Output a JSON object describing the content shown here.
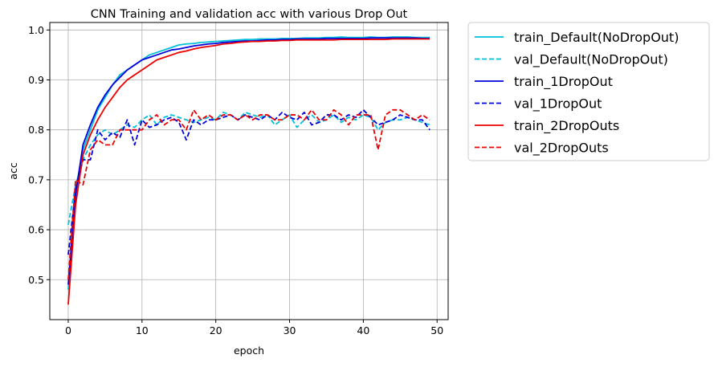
{
  "chart_data": {
    "type": "line",
    "title": "CNN Training and validation acc with various Drop Out",
    "xlabel": "epoch",
    "ylabel": "acc",
    "xlim": [
      -2.5,
      51.5
    ],
    "ylim": [
      0.42,
      1.015
    ],
    "xticks": [
      0,
      10,
      20,
      30,
      40,
      50
    ],
    "yticks": [
      0.5,
      0.6,
      0.7,
      0.8,
      0.9,
      1.0
    ],
    "grid": true,
    "legend_position": "outside-right",
    "series": [
      {
        "name": "train_Default(NoDropOut)",
        "color": "#00bfd8",
        "dash": "solid",
        "values": [
          0.48,
          0.68,
          0.76,
          0.8,
          0.84,
          0.865,
          0.89,
          0.91,
          0.92,
          0.93,
          0.94,
          0.95,
          0.955,
          0.96,
          0.965,
          0.97,
          0.972,
          0.973,
          0.975,
          0.976,
          0.977,
          0.978,
          0.979,
          0.98,
          0.981,
          0.981,
          0.982,
          0.982,
          0.982,
          0.983,
          0.983,
          0.983,
          0.984,
          0.984,
          0.984,
          0.985,
          0.985,
          0.986,
          0.985,
          0.985,
          0.985,
          0.986,
          0.985,
          0.985,
          0.986,
          0.986,
          0.986,
          0.985,
          0.985,
          0.985
        ]
      },
      {
        "name": "val_Default(NoDropOut)",
        "color": "#00bfd8",
        "dash": "dashed",
        "values": [
          0.61,
          0.69,
          0.74,
          0.77,
          0.79,
          0.8,
          0.79,
          0.8,
          0.81,
          0.805,
          0.82,
          0.83,
          0.81,
          0.825,
          0.83,
          0.825,
          0.82,
          0.815,
          0.82,
          0.825,
          0.82,
          0.835,
          0.83,
          0.82,
          0.835,
          0.83,
          0.825,
          0.83,
          0.81,
          0.82,
          0.83,
          0.805,
          0.82,
          0.83,
          0.815,
          0.82,
          0.83,
          0.815,
          0.825,
          0.82,
          0.83,
          0.825,
          0.8,
          0.815,
          0.82,
          0.82,
          0.825,
          0.82,
          0.815,
          0.81
        ]
      },
      {
        "name": "train_1DropOut",
        "color": "#0000dd",
        "dash": "solid",
        "values": [
          0.49,
          0.67,
          0.77,
          0.81,
          0.845,
          0.87,
          0.89,
          0.905,
          0.92,
          0.93,
          0.94,
          0.945,
          0.95,
          0.955,
          0.96,
          0.962,
          0.965,
          0.968,
          0.97,
          0.972,
          0.973,
          0.975,
          0.976,
          0.977,
          0.978,
          0.978,
          0.979,
          0.98,
          0.98,
          0.981,
          0.981,
          0.982,
          0.982,
          0.982,
          0.982,
          0.983,
          0.983,
          0.983,
          0.983,
          0.983,
          0.983,
          0.984,
          0.984,
          0.984,
          0.984,
          0.984,
          0.984,
          0.984,
          0.983,
          0.983
        ]
      },
      {
        "name": "val_1DropOut",
        "color": "#0000dd",
        "dash": "dashed",
        "values": [
          0.55,
          0.68,
          0.74,
          0.74,
          0.8,
          0.78,
          0.795,
          0.785,
          0.82,
          0.77,
          0.82,
          0.805,
          0.81,
          0.82,
          0.825,
          0.815,
          0.78,
          0.82,
          0.81,
          0.82,
          0.82,
          0.825,
          0.83,
          0.82,
          0.83,
          0.825,
          0.82,
          0.83,
          0.82,
          0.835,
          0.825,
          0.82,
          0.835,
          0.81,
          0.815,
          0.83,
          0.83,
          0.82,
          0.83,
          0.825,
          0.84,
          0.825,
          0.81,
          0.815,
          0.82,
          0.83,
          0.825,
          0.82,
          0.82,
          0.8
        ]
      },
      {
        "name": "train_2DropOuts",
        "color": "#ee0000",
        "dash": "solid",
        "values": [
          0.45,
          0.65,
          0.75,
          0.79,
          0.82,
          0.845,
          0.865,
          0.885,
          0.9,
          0.91,
          0.92,
          0.93,
          0.94,
          0.945,
          0.95,
          0.955,
          0.958,
          0.962,
          0.965,
          0.967,
          0.969,
          0.972,
          0.973,
          0.975,
          0.976,
          0.977,
          0.977,
          0.978,
          0.978,
          0.979,
          0.979,
          0.98,
          0.98,
          0.98,
          0.98,
          0.98,
          0.98,
          0.981,
          0.981,
          0.981,
          0.981,
          0.981,
          0.981,
          0.981,
          0.982,
          0.982,
          0.982,
          0.982,
          0.982,
          0.982
        ]
      },
      {
        "name": "val_2DropOuts",
        "color": "#ee0000",
        "dash": "dashed",
        "values": [
          0.5,
          0.7,
          0.69,
          0.76,
          0.78,
          0.77,
          0.77,
          0.8,
          0.8,
          0.8,
          0.8,
          0.82,
          0.83,
          0.81,
          0.82,
          0.82,
          0.8,
          0.84,
          0.82,
          0.83,
          0.82,
          0.83,
          0.83,
          0.82,
          0.83,
          0.82,
          0.83,
          0.83,
          0.82,
          0.82,
          0.83,
          0.83,
          0.82,
          0.84,
          0.82,
          0.82,
          0.84,
          0.83,
          0.81,
          0.83,
          0.83,
          0.83,
          0.76,
          0.83,
          0.84,
          0.84,
          0.83,
          0.82,
          0.83,
          0.82
        ]
      }
    ]
  }
}
